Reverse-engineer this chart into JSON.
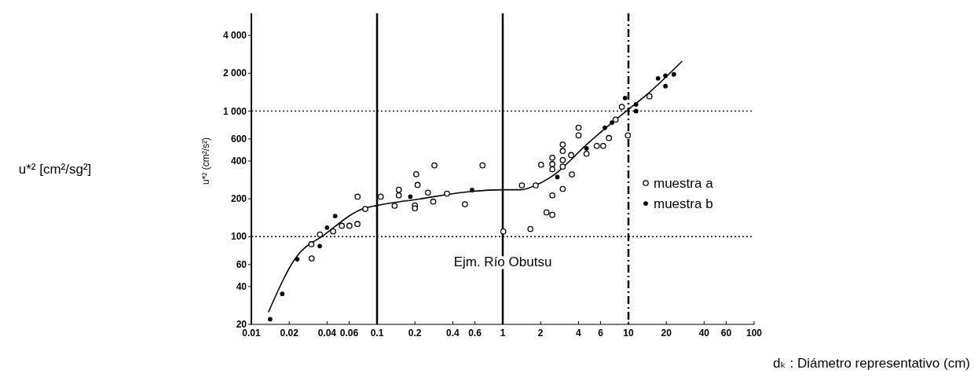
{
  "chart_data": {
    "type": "scatter",
    "xlabel": "dₖ : Diámetro representativo (cm)",
    "ylabel": "u*² (cm²/s²)",
    "annotations": [
      "u*² [cm²/sg²]",
      "Ejm. Río Obutsu"
    ],
    "log": "xy",
    "xlim": [
      0.01,
      100
    ],
    "ylim": [
      20,
      6000
    ],
    "xticks": [
      0.01,
      0.02,
      0.04,
      0.06,
      0.1,
      0.2,
      0.4,
      0.6,
      1,
      2,
      4,
      6,
      10,
      20,
      40,
      60,
      100
    ],
    "yticks": [
      20,
      40,
      60,
      100,
      200,
      400,
      600,
      {
        "value": 1000,
        "label": "1 000"
      },
      {
        "value": 2000,
        "label": "2 000"
      },
      {
        "value": 4000,
        "label": "4 000"
      }
    ],
    "legend": "right",
    "marker": "circle",
    "ref_lines": [
      {
        "axis": "x",
        "value": 0.1,
        "line_style": "solid"
      },
      {
        "axis": "x",
        "value": 1,
        "line_style": "solid"
      },
      {
        "axis": "x",
        "value": 10,
        "line_style": "dashed"
      },
      {
        "axis": "y",
        "value": 100,
        "line_style": "dotted"
      },
      {
        "axis": "y",
        "value": 1000,
        "line_style": "dotted"
      }
    ],
    "series": [
      {
        "name": "muestra a",
        "color": "#000000",
        "x": [
          0.0302,
          0.0351,
          0.03,
          0.0447,
          0.0524,
          0.0603,
          0.0698,
          0.07,
          0.0806,
          0.107,
          0.138,
          0.149,
          0.149,
          0.205,
          0.21,
          0.2,
          0.2,
          0.254,
          0.28,
          0.286,
          0.36,
          0.5,
          0.69,
          1.01,
          1.42,
          1.83,
          2.02,
          1.66,
          2.23,
          2.48,
          2.48,
          2.48,
          2.48,
          2.48,
          3.0,
          3.0,
          3.0,
          3.0,
          3.0,
          3.5,
          3.55,
          4.01,
          4.01,
          4.64,
          5.6,
          6.3,
          7.0,
          7.9,
          8.86,
          9.9,
          14.7
        ],
        "values": [
          67,
          104,
          87,
          110,
          122,
          122,
          126,
          208,
          166,
          208,
          176,
          236,
          213,
          314,
          258,
          177,
          168,
          224,
          190,
          369,
          220,
          181,
          369,
          110,
          256,
          256,
          373,
          115,
          156,
          149,
          213,
          425,
          378,
          344,
          541,
          481,
          407,
          361,
          240,
          446,
          313,
          737,
          640,
          457,
          528,
          528,
          610,
          855,
          1080,
          640,
          1310
        ]
      },
      {
        "name": "muestra b",
        "color": "#000000",
        "x": [
          0.0141,
          0.0176,
          0.0232,
          0.035,
          0.04,
          0.0464,
          0.184,
          0.57,
          2.72,
          4.64,
          6.5,
          7.4,
          9.4,
          11.5,
          11.5,
          19.7,
          17.2,
          19.7,
          23.0
        ],
        "values": [
          22,
          35,
          66,
          84,
          118,
          146,
          208,
          235,
          298,
          504,
          737,
          810,
          1270,
          1130,
          1000,
          1580,
          1820,
          1910,
          1960
        ]
      },
      {
        "type": "line",
        "color": "#000000",
        "marker": "none",
        "x": [
          0.01366,
          0.0226,
          0.0383,
          0.0787,
          0.1,
          0.215,
          0.56,
          1,
          1.39,
          1.83,
          2.6,
          4.64,
          7.94,
          10,
          14.7,
          26.8
        ],
        "values": [
          25,
          68,
          104,
          168,
          177,
          199,
          229,
          236,
          236,
          257,
          314,
          541,
          855,
          1030,
          1410,
          2500
        ]
      }
    ]
  }
}
